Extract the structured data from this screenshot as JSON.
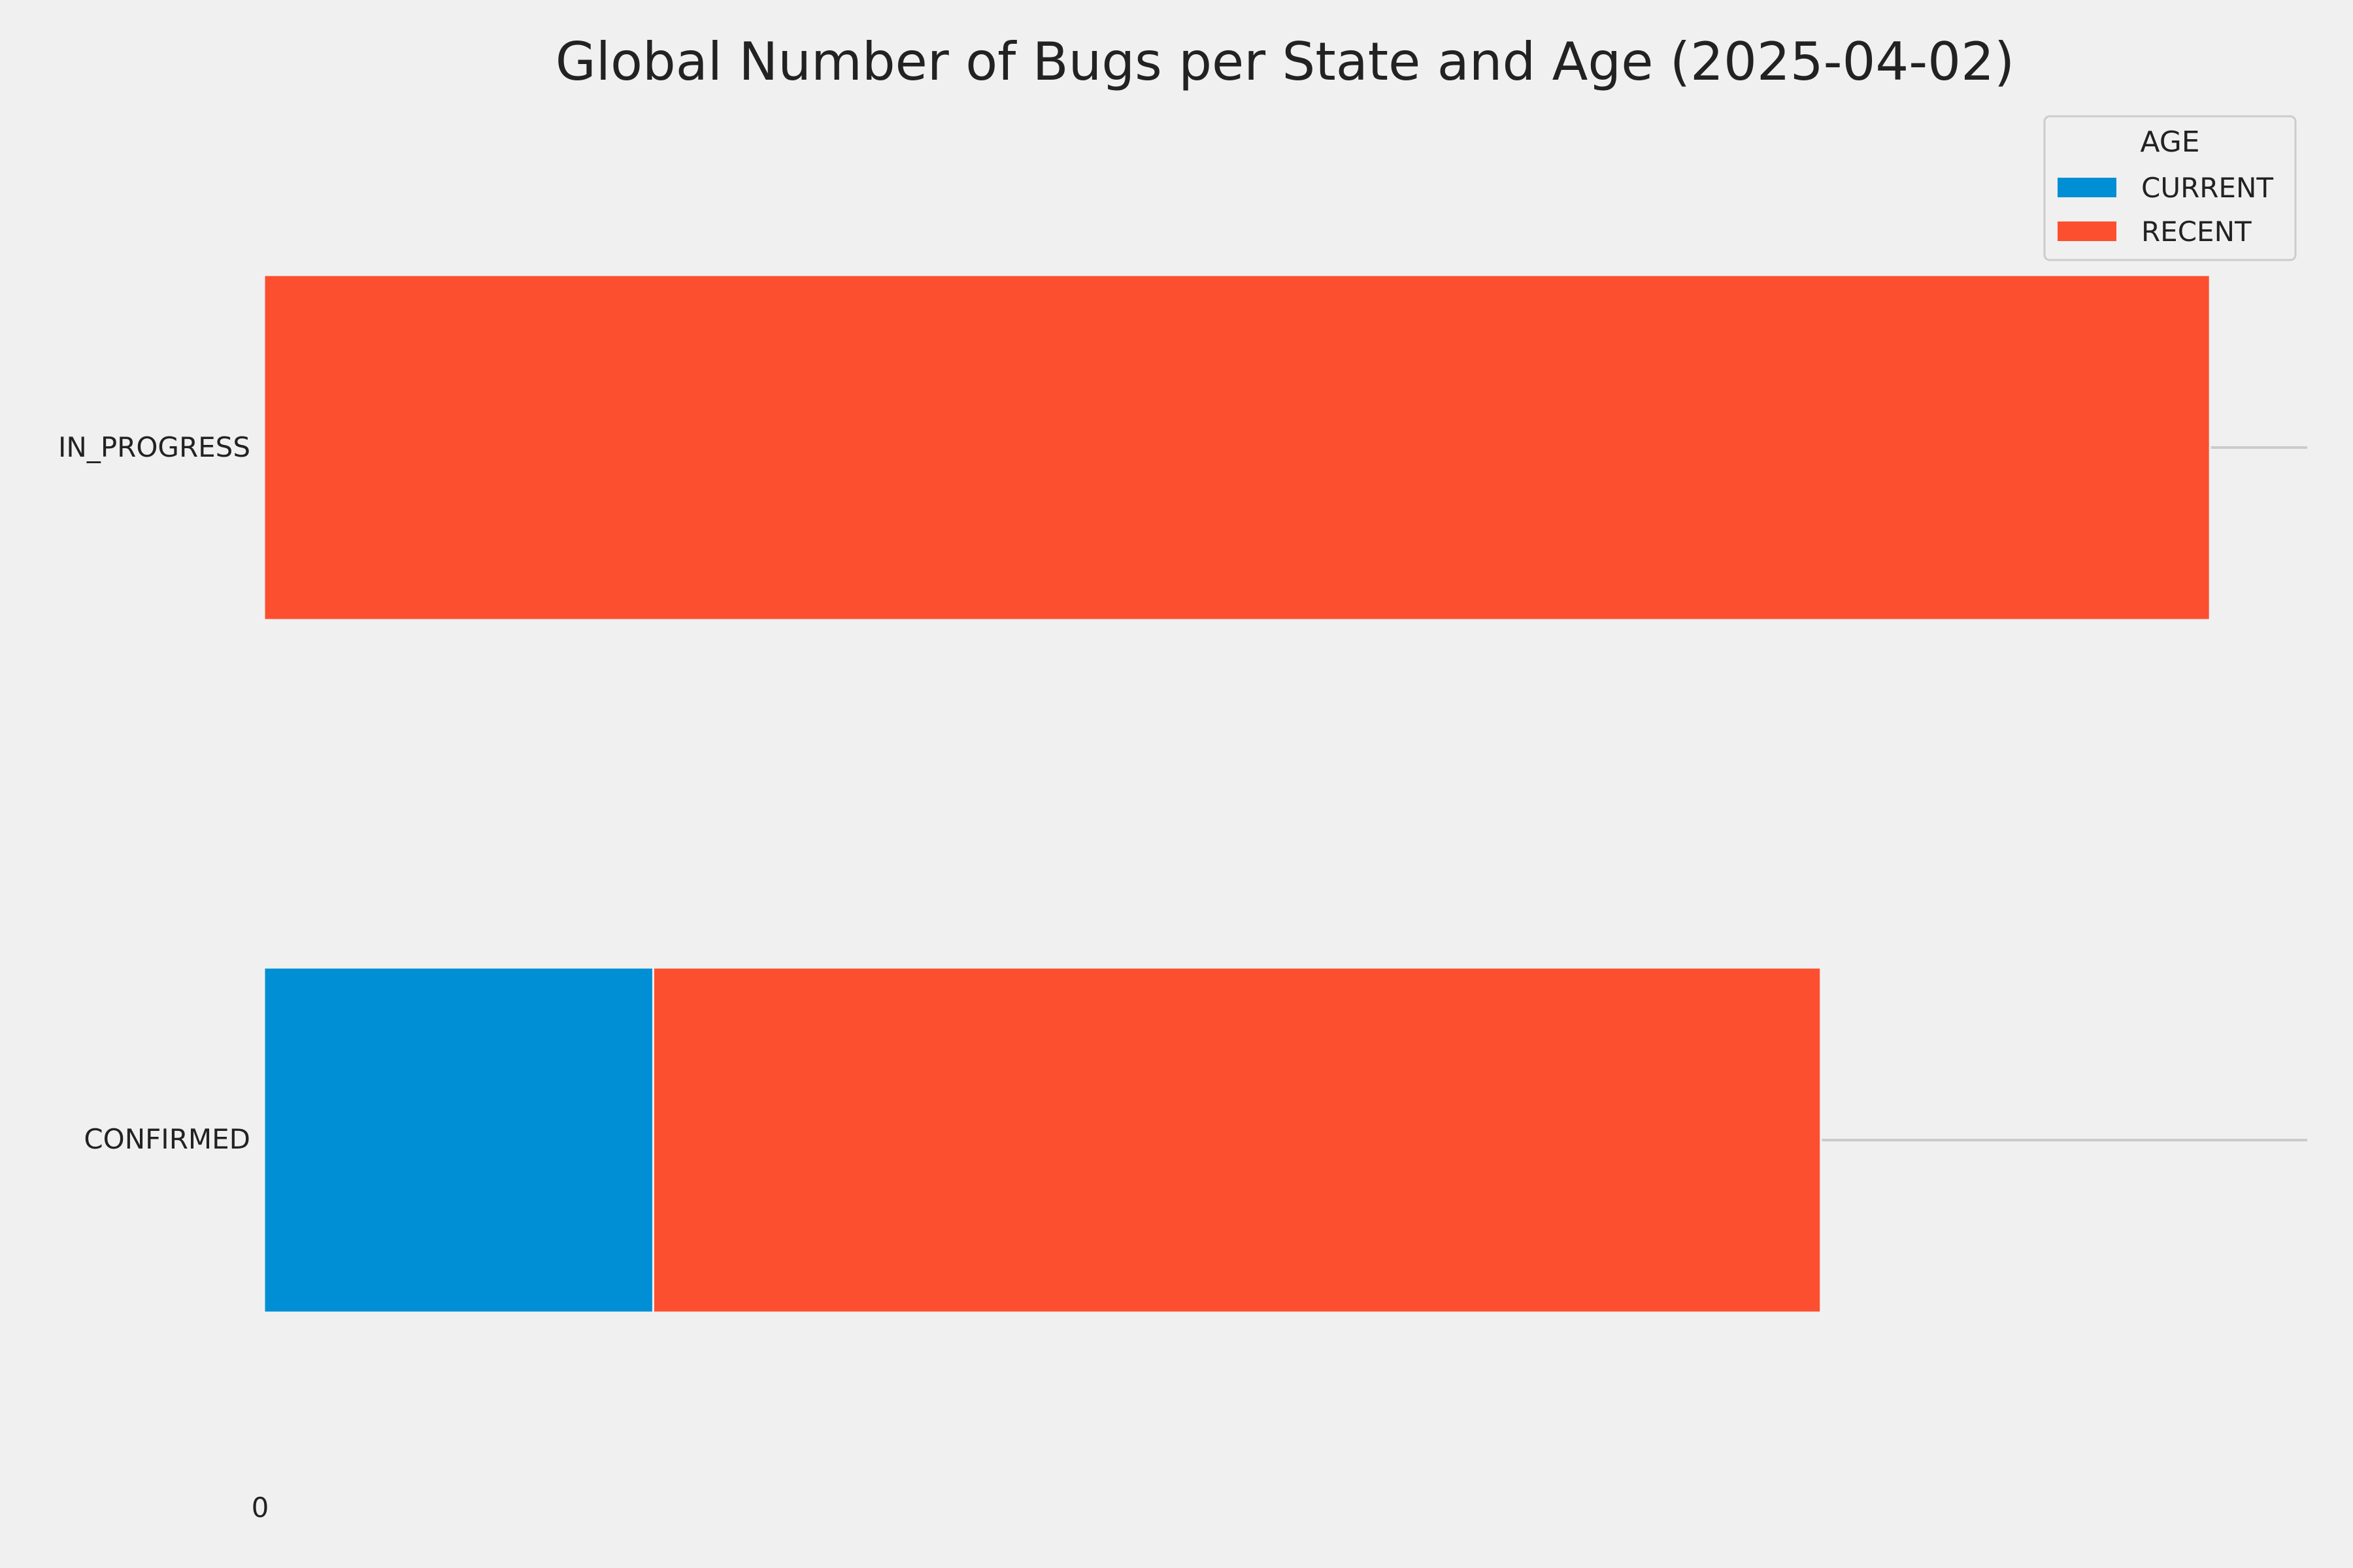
{
  "chart_data": {
    "type": "bar",
    "orientation": "horizontal",
    "stacked": true,
    "title": "Global Number of Bugs per State and Age (2025-04-02)",
    "categories": [
      "IN_PROGRESS",
      "CONFIRMED"
    ],
    "series": [
      {
        "name": "CURRENT",
        "color": "#008fd5",
        "values": [
          0,
          1
        ]
      },
      {
        "name": "RECENT",
        "color": "#fc4f30",
        "values": [
          5,
          3
        ]
      }
    ],
    "xlim": [
      0,
      5.25
    ],
    "xticks": [
      "0"
    ],
    "grid": "horizontal",
    "legend": {
      "title": "AGE",
      "position": "top-right"
    }
  }
}
